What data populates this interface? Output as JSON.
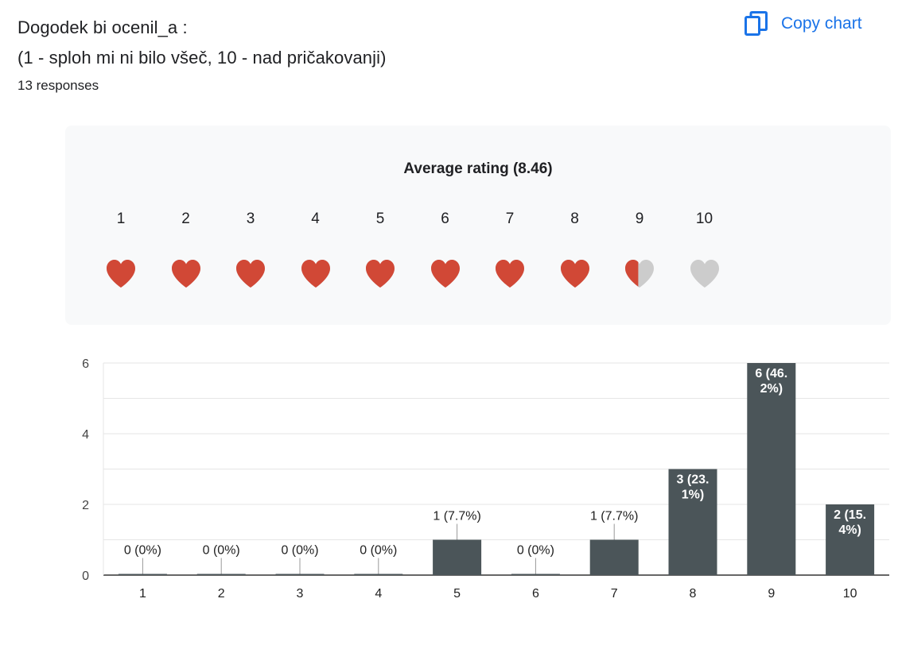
{
  "question": {
    "title_line1": "Dogodek bi ocenil_a :",
    "title_line2": "(1 - sploh mi ni bilo všeč, 10 - nad pričakovanji)",
    "responses": "13 responses"
  },
  "toolbar": {
    "copy_label": "Copy chart",
    "copy_icon": "copy-icon"
  },
  "rating_summary": {
    "title": "Average rating (8.46)",
    "average": 8.46,
    "scale_labels": [
      "1",
      "2",
      "3",
      "4",
      "5",
      "6",
      "7",
      "8",
      "9",
      "10"
    ],
    "heart_fill_color": "#d14836",
    "heart_empty_color": "#cccccc"
  },
  "chart_data": {
    "type": "bar",
    "categories": [
      "1",
      "2",
      "3",
      "4",
      "5",
      "6",
      "7",
      "8",
      "9",
      "10"
    ],
    "values": [
      0,
      0,
      0,
      0,
      1,
      0,
      1,
      3,
      6,
      2
    ],
    "data_labels": [
      "0 (0%)",
      "0 (0%)",
      "0 (0%)",
      "0 (0%)",
      "1 (7.7%)",
      "0 (0%)",
      "1 (7.7%)",
      "3 (23.1%)",
      "6 (46.2%)",
      "2 (15.4%)"
    ],
    "yticks": [
      "0",
      "2",
      "4",
      "6"
    ],
    "ylim": [
      0,
      6
    ],
    "grid": true,
    "bar_color": "#4b5559",
    "title": "",
    "xlabel": "",
    "ylabel": ""
  }
}
